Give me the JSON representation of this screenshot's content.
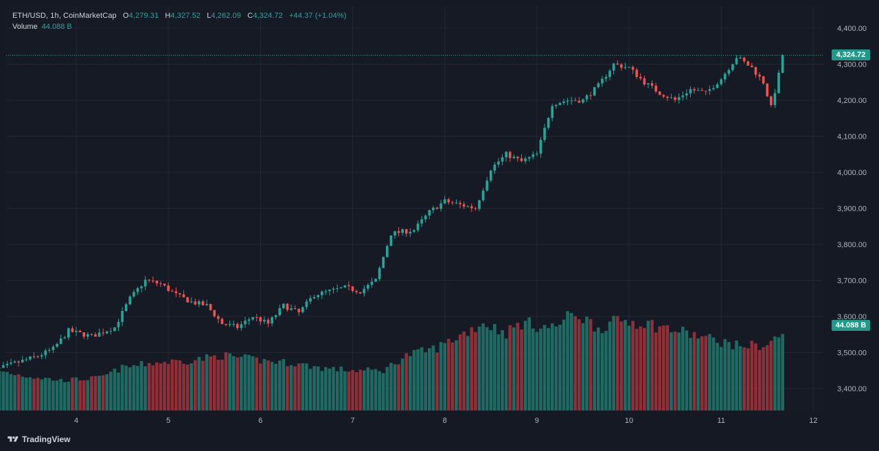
{
  "legend": {
    "symbol": "ETH/USD, 1h, CoinMarketCap",
    "open_label": "O",
    "open": "4,279.31",
    "high_label": "H",
    "high": "4,327.52",
    "low_label": "L",
    "low": "4,262.09",
    "close_label": "C",
    "close": "4,324.72",
    "change": "+44.37 (+1.04%)",
    "volume_label": "Volume",
    "volume": "44.088 B"
  },
  "last_price_tag": "4,324.72",
  "volume_tag": "44.088 B",
  "brand": "TradingView",
  "colors": {
    "background": "#161a25",
    "up": "#26a69a",
    "down": "#ef5350",
    "up_volume": "#1f6b63",
    "down_volume": "#8f3038",
    "grid": "#232733",
    "text": "#b2b5be"
  },
  "chart_data": {
    "type": "candlestick",
    "title": "ETH/USD, 1h, CoinMarketCap",
    "xlabel": "",
    "ylabel": "",
    "ylim": [
      3350,
      4440
    ],
    "y_ticks": [
      "4,400.00",
      "4,300.00",
      "4,200.00",
      "4,100.00",
      "4,000.00",
      "3,900.00",
      "3,800.00",
      "3,700.00",
      "3,600.00",
      "3,500.00",
      "3,400.00"
    ],
    "y_tick_values": [
      4400,
      4300,
      4200,
      4100,
      4000,
      3900,
      3800,
      3700,
      3600,
      3500,
      3400
    ],
    "x_ticks": [
      "4",
      "5",
      "6",
      "7",
      "8",
      "9",
      "10",
      "11",
      "12"
    ],
    "x_tick_positions": [
      24,
      48,
      72,
      96,
      120,
      144,
      168,
      192,
      216
    ],
    "last_price": 4324.72,
    "grid": true,
    "anchors": [
      [
        0,
        3440
      ],
      [
        8,
        3470
      ],
      [
        14,
        3490
      ],
      [
        18,
        3510
      ],
      [
        22,
        3560
      ],
      [
        28,
        3545
      ],
      [
        34,
        3570
      ],
      [
        38,
        3650
      ],
      [
        42,
        3700
      ],
      [
        46,
        3690
      ],
      [
        50,
        3660
      ],
      [
        54,
        3640
      ],
      [
        58,
        3630
      ],
      [
        62,
        3580
      ],
      [
        66,
        3570
      ],
      [
        70,
        3600
      ],
      [
        74,
        3580
      ],
      [
        78,
        3630
      ],
      [
        82,
        3610
      ],
      [
        86,
        3660
      ],
      [
        90,
        3670
      ],
      [
        94,
        3680
      ],
      [
        98,
        3670
      ],
      [
        102,
        3700
      ],
      [
        106,
        3830
      ],
      [
        112,
        3840
      ],
      [
        116,
        3890
      ],
      [
        120,
        3920
      ],
      [
        124,
        3910
      ],
      [
        128,
        3900
      ],
      [
        132,
        4010
      ],
      [
        136,
        4050
      ],
      [
        140,
        4030
      ],
      [
        144,
        4050
      ],
      [
        148,
        4190
      ],
      [
        152,
        4200
      ],
      [
        156,
        4200
      ],
      [
        160,
        4240
      ],
      [
        164,
        4300
      ],
      [
        168,
        4290
      ],
      [
        172,
        4250
      ],
      [
        176,
        4220
      ],
      [
        180,
        4200
      ],
      [
        184,
        4230
      ],
      [
        188,
        4220
      ],
      [
        192,
        4260
      ],
      [
        196,
        4320
      ],
      [
        200,
        4290
      ],
      [
        203,
        4250
      ],
      [
        205,
        4180
      ],
      [
        207,
        4270
      ],
      [
        208,
        4324.72
      ]
    ],
    "volume_anchors": [
      [
        0,
        0.17
      ],
      [
        10,
        0.14
      ],
      [
        20,
        0.12
      ],
      [
        30,
        0.13
      ],
      [
        36,
        0.17
      ],
      [
        44,
        0.19
      ],
      [
        54,
        0.2
      ],
      [
        62,
        0.22
      ],
      [
        72,
        0.2
      ],
      [
        80,
        0.19
      ],
      [
        88,
        0.17
      ],
      [
        96,
        0.16
      ],
      [
        104,
        0.16
      ],
      [
        110,
        0.22
      ],
      [
        118,
        0.25
      ],
      [
        124,
        0.3
      ],
      [
        130,
        0.35
      ],
      [
        136,
        0.31
      ],
      [
        140,
        0.35
      ],
      [
        148,
        0.33
      ],
      [
        154,
        0.39
      ],
      [
        160,
        0.33
      ],
      [
        166,
        0.36
      ],
      [
        172,
        0.35
      ],
      [
        180,
        0.32
      ],
      [
        188,
        0.29
      ],
      [
        196,
        0.26
      ],
      [
        204,
        0.26
      ],
      [
        208,
        0.31
      ]
    ],
    "volume_max_label": "44.088 B"
  }
}
